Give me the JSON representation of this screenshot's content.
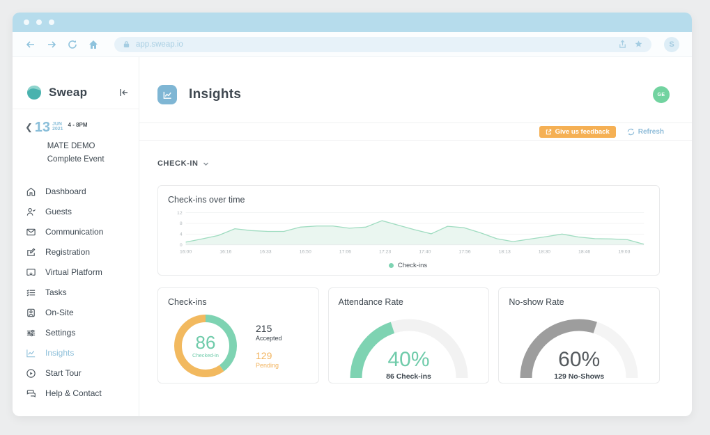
{
  "browser": {
    "url": "app.sweap.io",
    "profile_initial": "S"
  },
  "sidebar": {
    "brand": "Sweap",
    "event": {
      "day": "13",
      "month": "JUN",
      "year": "2021",
      "time": "4 - 8PM",
      "name": "MATE DEMO Complete Event"
    },
    "items": [
      {
        "label": "Dashboard",
        "icon": "home-icon",
        "active": false
      },
      {
        "label": "Guests",
        "icon": "person-icon",
        "active": false
      },
      {
        "label": "Communication",
        "icon": "envelope-icon",
        "active": false
      },
      {
        "label": "Registration",
        "icon": "form-edit-icon",
        "active": false
      },
      {
        "label": "Virtual Platform",
        "icon": "screen-cast-icon",
        "active": false
      },
      {
        "label": "Tasks",
        "icon": "checklist-icon",
        "active": false
      },
      {
        "label": "On-Site",
        "icon": "badge-person-icon",
        "active": false
      },
      {
        "label": "Settings",
        "icon": "sliders-icon",
        "active": false
      },
      {
        "label": "Insights",
        "icon": "line-chart-icon",
        "active": true
      }
    ],
    "footer_items": [
      {
        "label": "Start Tour",
        "icon": "play-circle-icon"
      },
      {
        "label": "Help & Contact",
        "icon": "chat-bubbles-icon"
      }
    ]
  },
  "header": {
    "title": "Insights",
    "avatar_initials": "GE"
  },
  "actions": {
    "feedback_label": "Give us feedback",
    "refresh_label": "Refresh"
  },
  "filter": {
    "label": "CHECK-IN"
  },
  "chart_data": {
    "type": "area",
    "title": "Check-ins over time",
    "x_ticks": [
      "16:00",
      "16:16",
      "16:33",
      "16:50",
      "17:06",
      "17:23",
      "17:40",
      "17:56",
      "18:13",
      "18:30",
      "18:46",
      "19:03"
    ],
    "values": [
      1,
      2.2,
      3.5,
      6,
      5.3,
      5,
      5,
      6.6,
      7,
      7,
      6.2,
      6.6,
      9,
      7.3,
      5.6,
      4.1,
      6.9,
      6.4,
      4.5,
      2.3,
      1.2,
      2.1,
      3,
      4,
      2.9,
      2.3,
      2.2,
      1.9,
      0.2
    ],
    "ylim": [
      0,
      12
    ],
    "y_ticks": [
      0,
      4,
      8,
      12
    ],
    "legend": "Check-ins",
    "legend_position": "bottom-center",
    "grid": true,
    "line_color": "#9fdcc0",
    "fill_color": "#eaf6f0"
  },
  "cards": {
    "checkins": {
      "title": "Check-ins",
      "value": "86",
      "value_label": "Checked-in",
      "percent": 40,
      "segment_color": "#7ed3b2",
      "remainder_color": "#f2b95f",
      "accepted_value": "215",
      "accepted_label": "Accepted",
      "pending_value": "129",
      "pending_label": "Pending"
    },
    "attendance": {
      "title": "Attendance Rate",
      "percent": 40,
      "percent_label": "40%",
      "sub_label": "86 Check-ins",
      "color": "#7ed3b2",
      "track_color": "#f2f2f2",
      "text_color": "#6fcbaa"
    },
    "noshow": {
      "title": "No-show Rate",
      "percent": 60,
      "percent_label": "60%",
      "sub_label": "129 No-Shows",
      "color": "#9d9d9d",
      "track_color": "#f4f4f4",
      "text_color": "#555a5e"
    }
  },
  "colors": {
    "accent_blue": "#7fb6d4",
    "accent_teal": "#7ed3b2",
    "accent_orange": "#f5b054"
  }
}
